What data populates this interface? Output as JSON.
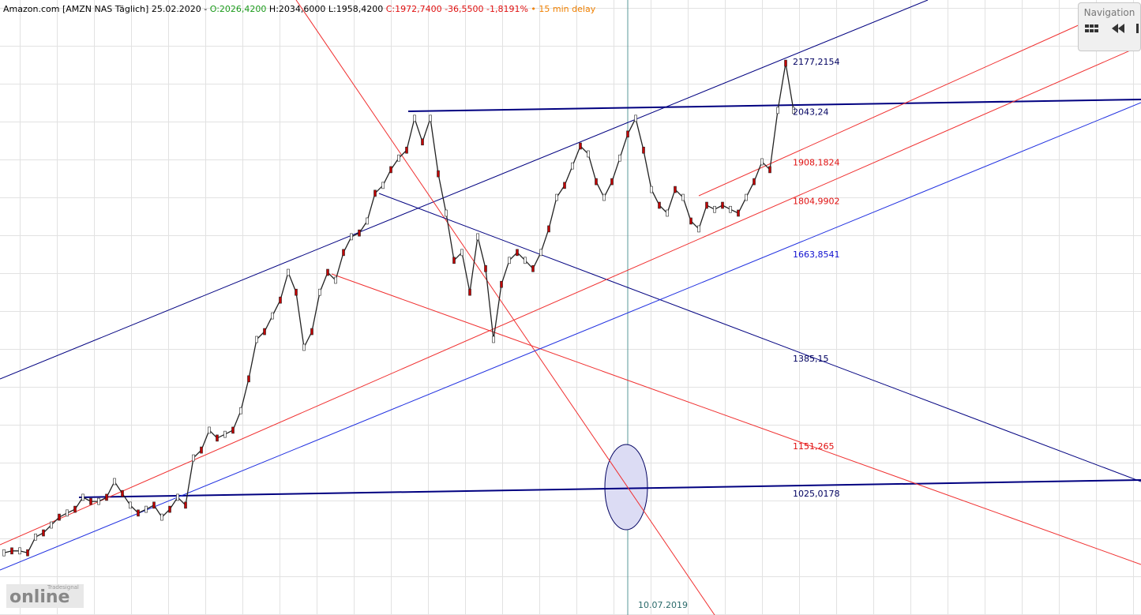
{
  "chart_data": {
    "type": "line",
    "header": [
      {
        "text": "Amazon.com [AMZN NAS Täglich] 25.02.2020 - ",
        "color": "#000000"
      },
      {
        "text": "O:2026,4200",
        "color": "#1a9a1a"
      },
      {
        "text": " H:2034,6000 L:1958,4200 ",
        "color": "#000000"
      },
      {
        "text": "C:1972,7400 -36,5500 -1,8191%",
        "color": "#e01010"
      },
      {
        "text": " • 15 min delay",
        "color": "#f08000"
      }
    ],
    "color": "#222222",
    "values": [
      869,
      874,
      874,
      869,
      911,
      922,
      943,
      964,
      975,
      985,
      1017,
      1006,
      1006,
      1017,
      1059,
      1027,
      996,
      975,
      985,
      996,
      964,
      985,
      1017,
      996,
      1122,
      1143,
      1196,
      1175,
      1185,
      1196,
      1248,
      1333,
      1438,
      1459,
      1501,
      1543,
      1617,
      1564,
      1417,
      1459,
      1564,
      1617,
      1596,
      1670,
      1712,
      1722,
      1754,
      1828,
      1849,
      1891,
      1922,
      1943,
      2028,
      1965,
      2028,
      1880,
      1775,
      1649,
      1670,
      1564,
      1712,
      1627,
      1438,
      1585,
      1649,
      1670,
      1649,
      1627,
      1670,
      1733,
      1817,
      1849,
      1901,
      1954,
      1933,
      1859,
      1817,
      1859,
      1922,
      1986,
      2028,
      1943,
      1838,
      1796,
      1775,
      1838,
      1817,
      1754,
      1733,
      1796,
      1785,
      1796,
      1785,
      1775,
      1817,
      1859,
      1912,
      1891,
      2049,
      2175,
      2049
    ],
    "ylim": [
      703,
      2343.6
    ],
    "levels": [
      {
        "value": 2177.2154,
        "label": "2177,2154",
        "color": "#000060"
      },
      {
        "value": 2043.24,
        "label": "2043,24",
        "color": "#000060"
      },
      {
        "value": 1908.1824,
        "label": "1908,1824",
        "color": "#e01010"
      },
      {
        "value": 1804.9902,
        "label": "1804,9902",
        "color": "#e01010"
      },
      {
        "value": 1663.8541,
        "label": "1663,8541",
        "color": "#1010d0"
      },
      {
        "value": 1385.15,
        "label": "1385,15",
        "color": "#000060"
      },
      {
        "value": 1151.265,
        "label": "1151,265",
        "color": "#e01010"
      },
      {
        "value": 1025.0178,
        "label": "1025,0178",
        "color": "#000060"
      }
    ],
    "date_label": "10.07.2019",
    "navigation": "Navigation",
    "logo": "online",
    "logo_brand": "Tradesignal"
  }
}
